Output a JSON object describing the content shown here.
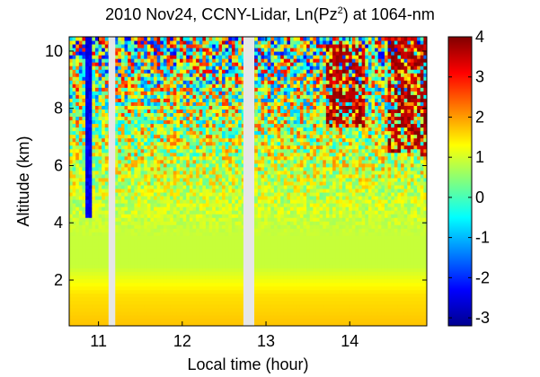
{
  "chart_data": {
    "type": "heatmap",
    "title_prefix": "2010 Nov24, CCNY-Lidar, Ln(Pz",
    "title_sup": "2",
    "title_suffix": ") at 1064-nm",
    "xlabel": "Local time (hour)",
    "ylabel": "Altitude (km)",
    "xlim": [
      10.65,
      14.92
    ],
    "ylim": [
      0.4,
      10.5
    ],
    "x_ticks": [
      11,
      12,
      13,
      14
    ],
    "x_tick_labels": [
      "11",
      "12",
      "13",
      "14"
    ],
    "y_ticks": [
      2,
      4,
      6,
      8,
      10
    ],
    "y_tick_labels": [
      "2",
      "4",
      "6",
      "8",
      "10"
    ],
    "colorbar": {
      "range": [
        -3.2,
        4
      ],
      "ticks": [
        -3,
        -2,
        -1,
        0,
        1,
        2,
        3,
        4
      ],
      "tick_labels": [
        "-3",
        "-2",
        "-1",
        "0",
        "1",
        "2",
        "3",
        "4"
      ],
      "colormap": "jet"
    },
    "data_gaps_hours": [
      [
        11.12,
        11.2
      ],
      [
        12.73,
        12.86
      ]
    ],
    "features": [
      {
        "name": "cloud",
        "time_range": [
          14.45,
          14.92
        ],
        "altitude_range": [
          6.3,
          10.5
        ]
      },
      {
        "name": "cloud",
        "time_range": [
          13.7,
          14.2
        ],
        "altitude_range": [
          7.3,
          10.2
        ]
      }
    ],
    "value_profile": [
      {
        "altitude": 0.5,
        "value": 1.7
      },
      {
        "altitude": 1.5,
        "value": 1.5
      },
      {
        "altitude": 2.5,
        "value": 0.9
      },
      {
        "altitude": 4.0,
        "value": 0.9
      },
      {
        "altitude": 6.0,
        "value": 1.0
      },
      {
        "altitude": 8.0,
        "value": 0.8
      },
      {
        "altitude": 10.0,
        "value": 0.5
      }
    ]
  }
}
